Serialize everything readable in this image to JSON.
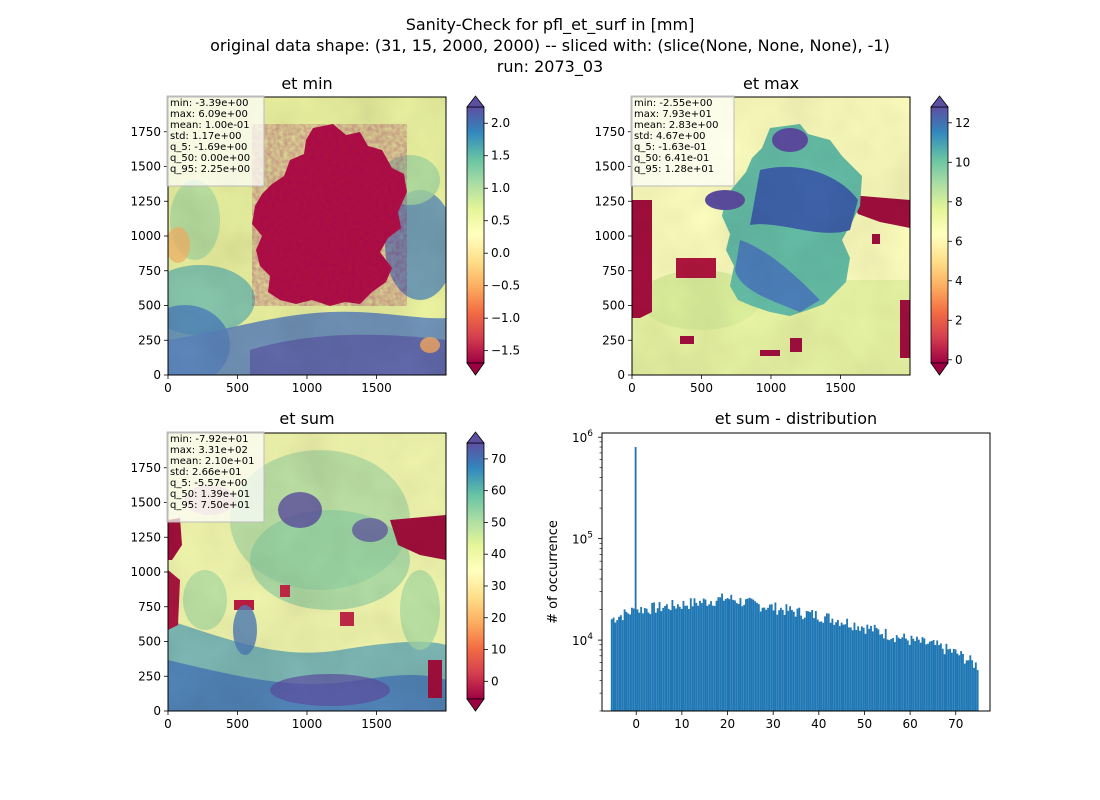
{
  "figure": {
    "title_lines": [
      "Sanity-Check for pfl_et_surf in [mm]",
      "original data shape: (31, 15, 2000, 2000) -- sliced with: (slice(None, None, None), -1)",
      "run: 2073_03"
    ]
  },
  "chart_data": [
    {
      "type": "heatmap",
      "title": "et min",
      "colormap": "Spectral",
      "x_ticks": [
        "0",
        "500",
        "1000",
        "1500"
      ],
      "y_ticks": [
        "0",
        "250",
        "500",
        "750",
        "1000",
        "1250",
        "1500",
        "1750"
      ],
      "xlim": [
        0,
        2000
      ],
      "ylim": [
        0,
        2000
      ],
      "colorbar": {
        "ticks": [
          "2.0",
          "1.5",
          "1.0",
          "0.5",
          "0.0",
          "−0.5",
          "−1.0",
          "−1.5"
        ],
        "range": [
          -1.69,
          2.25
        ],
        "extend": "both"
      },
      "stats": [
        "min: -3.39e+00",
        "max: 6.09e+00",
        "mean: 1.00e-01",
        "std: 1.17e+00",
        "q_5: -1.69e+00",
        "q_50: 0.00e+00",
        "q_95: 2.25e+00"
      ]
    },
    {
      "type": "heatmap",
      "title": "et max",
      "colormap": "Spectral",
      "x_ticks": [
        "0",
        "500",
        "1000",
        "1500"
      ],
      "y_ticks": [
        "0",
        "250",
        "500",
        "750",
        "1000",
        "1250",
        "1500",
        "1750"
      ],
      "xlim": [
        0,
        2000
      ],
      "ylim": [
        0,
        2000
      ],
      "colorbar": {
        "ticks": [
          "12",
          "10",
          "8",
          "6",
          "4",
          "2",
          "0"
        ],
        "range": [
          -0.163,
          12.8
        ],
        "extend": "both"
      },
      "stats": [
        "min: -2.55e+00",
        "max: 7.93e+01",
        "mean: 2.83e+00",
        "std: 4.67e+00",
        "q_5: -1.63e-01",
        "q_50: 6.41e-01",
        "q_95: 1.28e+01"
      ]
    },
    {
      "type": "heatmap",
      "title": "et sum",
      "colormap": "Spectral",
      "x_ticks": [
        "0",
        "500",
        "1000",
        "1500"
      ],
      "y_ticks": [
        "0",
        "250",
        "500",
        "750",
        "1000",
        "1250",
        "1500",
        "1750"
      ],
      "xlim": [
        0,
        2000
      ],
      "ylim": [
        0,
        2000
      ],
      "colorbar": {
        "ticks": [
          "70",
          "60",
          "50",
          "40",
          "30",
          "20",
          "10",
          "0"
        ],
        "range": [
          -5.57,
          75.0
        ],
        "extend": "both"
      },
      "stats": [
        "min: -7.92e+01",
        "max: 3.31e+02",
        "mean: 2.10e+01",
        "std: 2.66e+01",
        "q_5: -5.57e+00",
        "q_50: 1.39e+01",
        "q_95: 7.50e+01"
      ]
    },
    {
      "type": "bar",
      "title": "et sum - distribution",
      "ylabel": "# of occurrence",
      "yscale": "log",
      "ylim": [
        2000,
        1100000
      ],
      "xlim": [
        -7.5,
        77.5
      ],
      "x_ticks": [
        "0",
        "10",
        "20",
        "30",
        "40",
        "50",
        "60",
        "70"
      ],
      "y_ticks": [
        "10^4",
        "10^5",
        "10^6"
      ],
      "color": "#1f77b4",
      "bin_range": [
        -5.57,
        75.0
      ],
      "spike": {
        "x": 0.0,
        "value": 800000
      },
      "envelope": {
        "x": [
          -5.5,
          0,
          5,
          10,
          15,
          20,
          25,
          30,
          35,
          40,
          45,
          50,
          55,
          60,
          65,
          70,
          75
        ],
        "values": [
          16000,
          20000,
          21000,
          22500,
          24000,
          26000,
          23000,
          21000,
          19000,
          17500,
          15500,
          13500,
          11500,
          10000,
          9000,
          7500,
          5500
        ]
      }
    }
  ]
}
